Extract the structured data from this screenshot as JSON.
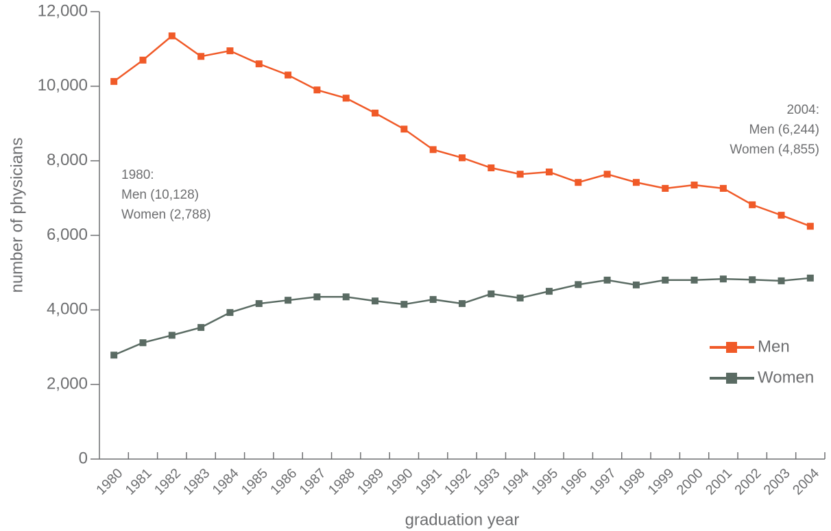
{
  "chart_data": {
    "type": "line",
    "y_label": "number of physicians",
    "x_label": "graduation year",
    "categories": [
      "1980",
      "1981",
      "1982",
      "1983",
      "1984",
      "1985",
      "1986",
      "1987",
      "1988",
      "1989",
      "1990",
      "1991",
      "1992",
      "1993",
      "1994",
      "1995",
      "1996",
      "1997",
      "1998",
      "1999",
      "2000",
      "2001",
      "2002",
      "2003",
      "2004"
    ],
    "series": [
      {
        "name": "Men",
        "color": "#f05a28",
        "values": [
          10128,
          10700,
          11350,
          10800,
          10950,
          10600,
          10300,
          9900,
          9680,
          9280,
          8850,
          8300,
          8080,
          7810,
          7640,
          7700,
          7420,
          7640,
          7420,
          7260,
          7350,
          7260,
          6820,
          6540,
          6244
        ]
      },
      {
        "name": "Women",
        "color": "#5a6b63",
        "values": [
          2788,
          3120,
          3320,
          3530,
          3930,
          4170,
          4260,
          4350,
          4350,
          4240,
          4150,
          4280,
          4170,
          4430,
          4320,
          4500,
          4680,
          4800,
          4670,
          4800,
          4800,
          4830,
          4810,
          4780,
          4855
        ]
      }
    ],
    "ylim": [
      0,
      12000
    ],
    "yticks": [
      0,
      {
        "value": 2000,
        "label": "2,000"
      },
      {
        "value": 4000,
        "label": "4,000"
      },
      {
        "value": 6000,
        "label": "6,000"
      },
      {
        "value": 8000,
        "label": "8,000"
      },
      {
        "value": 10000,
        "label": "10,000"
      },
      {
        "value": 12000,
        "label": "12,000"
      }
    ],
    "annotations": [
      [
        "1980:",
        "Men (10,128)",
        "Women (2,788)"
      ],
      [
        "2004:",
        "Men (6,244)",
        "Women (4,855)"
      ]
    ],
    "legend": "right"
  }
}
